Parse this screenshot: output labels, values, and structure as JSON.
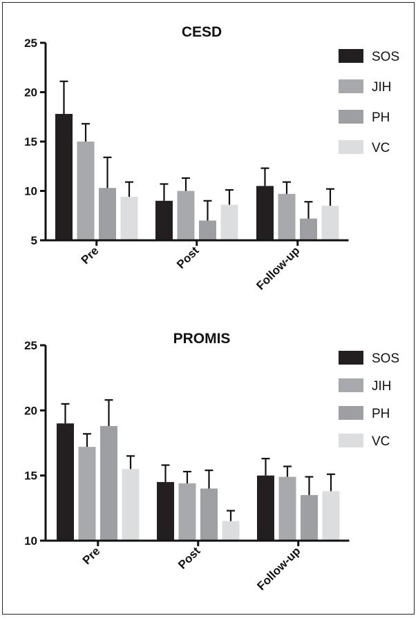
{
  "chart_data": [
    {
      "type": "bar",
      "title": "CESD",
      "categories": [
        "Pre",
        "Post",
        "Follow-up"
      ],
      "ylim": [
        5,
        25
      ],
      "yticks": [
        5,
        10,
        15,
        20,
        25
      ],
      "legend_position": "right",
      "series": [
        {
          "name": "SOS",
          "color": "#231f20",
          "values": [
            17.8,
            9.0,
            10.5
          ],
          "errors": [
            3.3,
            1.7,
            1.8
          ]
        },
        {
          "name": "JIH",
          "color": "#a7a9ac",
          "values": [
            15.0,
            10.0,
            9.7
          ],
          "errors": [
            1.8,
            1.3,
            1.2
          ]
        },
        {
          "name": "PH",
          "color": "#9d9fa2",
          "values": [
            10.3,
            7.0,
            7.2
          ],
          "errors": [
            3.1,
            2.0,
            1.7
          ]
        },
        {
          "name": "VC",
          "color": "#dcdddf",
          "values": [
            9.4,
            8.6,
            8.5
          ],
          "errors": [
            1.5,
            1.5,
            1.7
          ]
        }
      ]
    },
    {
      "type": "bar",
      "title": "PROMIS",
      "categories": [
        "Pre",
        "Post",
        "Follow-up"
      ],
      "ylim": [
        10,
        25
      ],
      "yticks": [
        10,
        15,
        20,
        25
      ],
      "legend_position": "right",
      "series": [
        {
          "name": "SOS",
          "color": "#231f20",
          "values": [
            19.0,
            14.5,
            15.0
          ],
          "errors": [
            1.5,
            1.3,
            1.3
          ]
        },
        {
          "name": "JIH",
          "color": "#a7a9ac",
          "values": [
            17.2,
            14.4,
            14.9
          ],
          "errors": [
            1.0,
            0.9,
            0.8
          ]
        },
        {
          "name": "PH",
          "color": "#9d9fa2",
          "values": [
            18.8,
            14.0,
            13.5
          ],
          "errors": [
            2.0,
            1.4,
            1.4
          ]
        },
        {
          "name": "VC",
          "color": "#dcdddf",
          "values": [
            15.5,
            11.5,
            13.8
          ],
          "errors": [
            1.0,
            0.8,
            1.3
          ]
        }
      ]
    }
  ]
}
